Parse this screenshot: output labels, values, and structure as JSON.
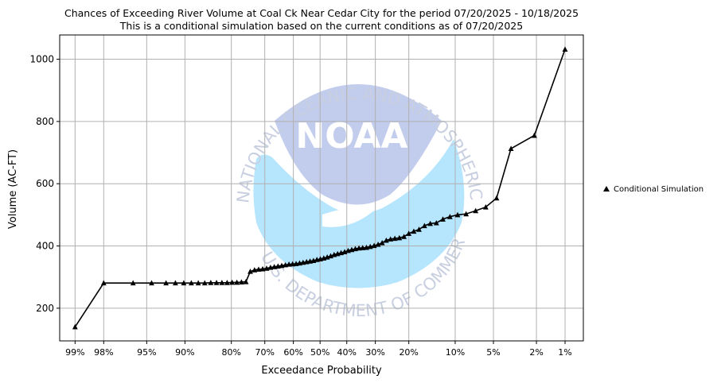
{
  "chart_data": {
    "type": "line",
    "title": "Chances of Exceeding River Volume at Coal Ck Near Cedar City for the period 07/20/2025 - 10/18/2025",
    "subtitle": "This is a conditional simulation based on the current conditions as of 07/20/2025",
    "xlabel": "Exceedance Probability",
    "ylabel": "Volume (AC-FT)",
    "x_scale": "normal-probability (reversed)",
    "x_ticks": [
      {
        "p": 0.99,
        "label": "99%"
      },
      {
        "p": 0.98,
        "label": "98%"
      },
      {
        "p": 0.95,
        "label": "95%"
      },
      {
        "p": 0.9,
        "label": "90%"
      },
      {
        "p": 0.8,
        "label": "80%"
      },
      {
        "p": 0.7,
        "label": "70%"
      },
      {
        "p": 0.6,
        "label": "60%"
      },
      {
        "p": 0.5,
        "label": "50%"
      },
      {
        "p": 0.4,
        "label": "40%"
      },
      {
        "p": 0.3,
        "label": "30%"
      },
      {
        "p": 0.2,
        "label": "20%"
      },
      {
        "p": 0.1,
        "label": "10%"
      },
      {
        "p": 0.05,
        "label": "5%"
      },
      {
        "p": 0.02,
        "label": "2%"
      },
      {
        "p": 0.01,
        "label": "1%"
      }
    ],
    "y_ticks": [
      200,
      400,
      600,
      800,
      1000
    ],
    "ylim": [
      95,
      1078
    ],
    "grid": true,
    "legend_placement": "right",
    "series": [
      {
        "name": "Conditional Simulation",
        "color": "#000000",
        "marker": "triangle",
        "points": [
          [
            0.99,
            140
          ],
          [
            0.98,
            281
          ],
          [
            0.962,
            281
          ],
          [
            0.945,
            281
          ],
          [
            0.928,
            281
          ],
          [
            0.915,
            281
          ],
          [
            0.902,
            281
          ],
          [
            0.889,
            281
          ],
          [
            0.876,
            281
          ],
          [
            0.863,
            281
          ],
          [
            0.85,
            282
          ],
          [
            0.837,
            282
          ],
          [
            0.824,
            282
          ],
          [
            0.811,
            282
          ],
          [
            0.798,
            283
          ],
          [
            0.785,
            283
          ],
          [
            0.772,
            284
          ],
          [
            0.759,
            285
          ],
          [
            0.746,
            318
          ],
          [
            0.733,
            323
          ],
          [
            0.72,
            325
          ],
          [
            0.707,
            326
          ],
          [
            0.694,
            328
          ],
          [
            0.681,
            331
          ],
          [
            0.668,
            333
          ],
          [
            0.655,
            335
          ],
          [
            0.642,
            337
          ],
          [
            0.629,
            339
          ],
          [
            0.616,
            341
          ],
          [
            0.603,
            342
          ],
          [
            0.59,
            343
          ],
          [
            0.577,
            345
          ],
          [
            0.564,
            347
          ],
          [
            0.551,
            349
          ],
          [
            0.538,
            351
          ],
          [
            0.525,
            353
          ],
          [
            0.512,
            356
          ],
          [
            0.499,
            358
          ],
          [
            0.486,
            361
          ],
          [
            0.473,
            364
          ],
          [
            0.46,
            368
          ],
          [
            0.447,
            372
          ],
          [
            0.434,
            375
          ],
          [
            0.421,
            378
          ],
          [
            0.408,
            381
          ],
          [
            0.395,
            385
          ],
          [
            0.382,
            388
          ],
          [
            0.369,
            391
          ],
          [
            0.356,
            393
          ],
          [
            0.343,
            394
          ],
          [
            0.33,
            395
          ],
          [
            0.317,
            398
          ],
          [
            0.304,
            401
          ],
          [
            0.291,
            405
          ],
          [
            0.278,
            410
          ],
          [
            0.265,
            418
          ],
          [
            0.252,
            422
          ],
          [
            0.239,
            424
          ],
          [
            0.226,
            426
          ],
          [
            0.213,
            430
          ],
          [
            0.2,
            440
          ],
          [
            0.187,
            447
          ],
          [
            0.174,
            453
          ],
          [
            0.161,
            465
          ],
          [
            0.148,
            472
          ],
          [
            0.135,
            474
          ],
          [
            0.122,
            486
          ],
          [
            0.109,
            494
          ],
          [
            0.096,
            500
          ],
          [
            0.083,
            503
          ],
          [
            0.07,
            513
          ],
          [
            0.058,
            525
          ],
          [
            0.047,
            554
          ],
          [
            0.035,
            713
          ],
          [
            0.021,
            755
          ],
          [
            0.01,
            1032
          ]
        ]
      }
    ]
  }
}
